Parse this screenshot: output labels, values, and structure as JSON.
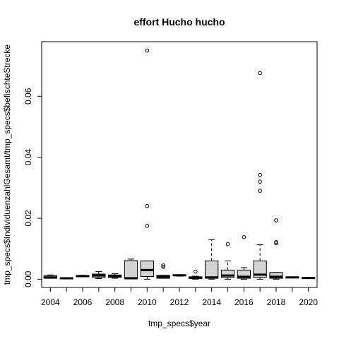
{
  "chart_data": {
    "type": "boxplot",
    "title": "effort Hucho hucho",
    "xlabel": "tmp_specs$year",
    "ylabel": "tmp_specs$IndividuenzahlGesamt/tmp_specs$befischteStrecke",
    "x_tick_labels": [
      "2004",
      "2006",
      "2008",
      "2010",
      "2012",
      "2014",
      "2016",
      "2018",
      "2020"
    ],
    "y_tick_labels": [
      "0.00",
      "0.02",
      "0.04",
      "0.06"
    ],
    "y_ticks": [
      0.0,
      0.02,
      0.04,
      0.06
    ],
    "ylim": [
      -0.0027,
      0.0779
    ],
    "grid": false,
    "box_fill": "#d3d3d3",
    "categories": [
      "2004",
      "2005",
      "2006",
      "2007",
      "2008",
      "2009",
      "2010",
      "2011",
      "2012",
      "2013",
      "2014",
      "2015",
      "2016",
      "2017",
      "2018",
      "2019",
      "2020"
    ],
    "boxes": [
      {
        "year": "2004",
        "whisker_low": 0.0003,
        "q1": 0.0003,
        "median": 0.0006,
        "q3": 0.0012,
        "whisker_high": 0.0014,
        "outliers": []
      },
      {
        "year": "2005",
        "whisker_low": 0.0002,
        "q1": 0.0002,
        "median": 0.0003,
        "q3": 0.0003,
        "whisker_high": 0.0004,
        "outliers": []
      },
      {
        "year": "2006",
        "whisker_low": 0.0008,
        "q1": 0.0008,
        "median": 0.001,
        "q3": 0.0012,
        "whisker_high": 0.0013,
        "outliers": []
      },
      {
        "year": "2007",
        "whisker_low": 0.0002,
        "q1": 0.0006,
        "median": 0.0012,
        "q3": 0.0017,
        "whisker_high": 0.0025,
        "outliers": []
      },
      {
        "year": "2008",
        "whisker_low": 0.0003,
        "q1": 0.0006,
        "median": 0.001,
        "q3": 0.0014,
        "whisker_high": 0.0018,
        "outliers": []
      },
      {
        "year": "2009",
        "whisker_low": 0.0001,
        "q1": 0.0001,
        "median": 0.0003,
        "q3": 0.0061,
        "whisker_high": 0.0066,
        "outliers": []
      },
      {
        "year": "2010",
        "whisker_low": 0.0,
        "q1": 0.0009,
        "median": 0.003,
        "q3": 0.006,
        "whisker_high": 0.006,
        "outliers": [
          0.0175,
          0.024,
          0.075
        ]
      },
      {
        "year": "2011",
        "whisker_low": 0.0003,
        "q1": 0.0003,
        "median": 0.0008,
        "q3": 0.0013,
        "whisker_high": 0.0013,
        "outliers": [
          0.004,
          0.0045
        ]
      },
      {
        "year": "2012",
        "whisker_low": 0.001,
        "q1": 0.0011,
        "median": 0.0013,
        "q3": 0.0014,
        "whisker_high": 0.0015,
        "outliers": []
      },
      {
        "year": "2013",
        "whisker_low": 0.0,
        "q1": 0.0002,
        "median": 0.0005,
        "q3": 0.0008,
        "whisker_high": 0.001,
        "outliers": [
          0.0025
        ]
      },
      {
        "year": "2014",
        "whisker_low": 0.0,
        "q1": 0.0003,
        "median": 0.0006,
        "q3": 0.006,
        "whisker_high": 0.013,
        "outliers": []
      },
      {
        "year": "2015",
        "whisker_low": 0.0,
        "q1": 0.0006,
        "median": 0.0012,
        "q3": 0.003,
        "whisker_high": 0.006,
        "outliers": [
          0.0115
        ]
      },
      {
        "year": "2016",
        "whisker_low": 0.0,
        "q1": 0.0003,
        "median": 0.0008,
        "q3": 0.003,
        "whisker_high": 0.0038,
        "outliers": [
          0.0138
        ]
      },
      {
        "year": "2017",
        "whisker_low": 0.0,
        "q1": 0.0006,
        "median": 0.0015,
        "q3": 0.006,
        "whisker_high": 0.0113,
        "outliers": [
          0.029,
          0.032,
          0.0342,
          0.0676
        ]
      },
      {
        "year": "2018",
        "whisker_low": 0.0,
        "q1": 0.0003,
        "median": 0.0008,
        "q3": 0.0022,
        "whisker_high": 0.0022,
        "outliers": [
          0.0118,
          0.0122,
          0.0193
        ]
      },
      {
        "year": "2019",
        "whisker_low": 0.0004,
        "q1": 0.0004,
        "median": 0.0006,
        "q3": 0.0007,
        "whisker_high": 0.0007,
        "outliers": []
      },
      {
        "year": "2020",
        "whisker_low": 0.0002,
        "q1": 0.0002,
        "median": 0.0004,
        "q3": 0.0005,
        "whisker_high": 0.0005,
        "outliers": []
      }
    ]
  }
}
